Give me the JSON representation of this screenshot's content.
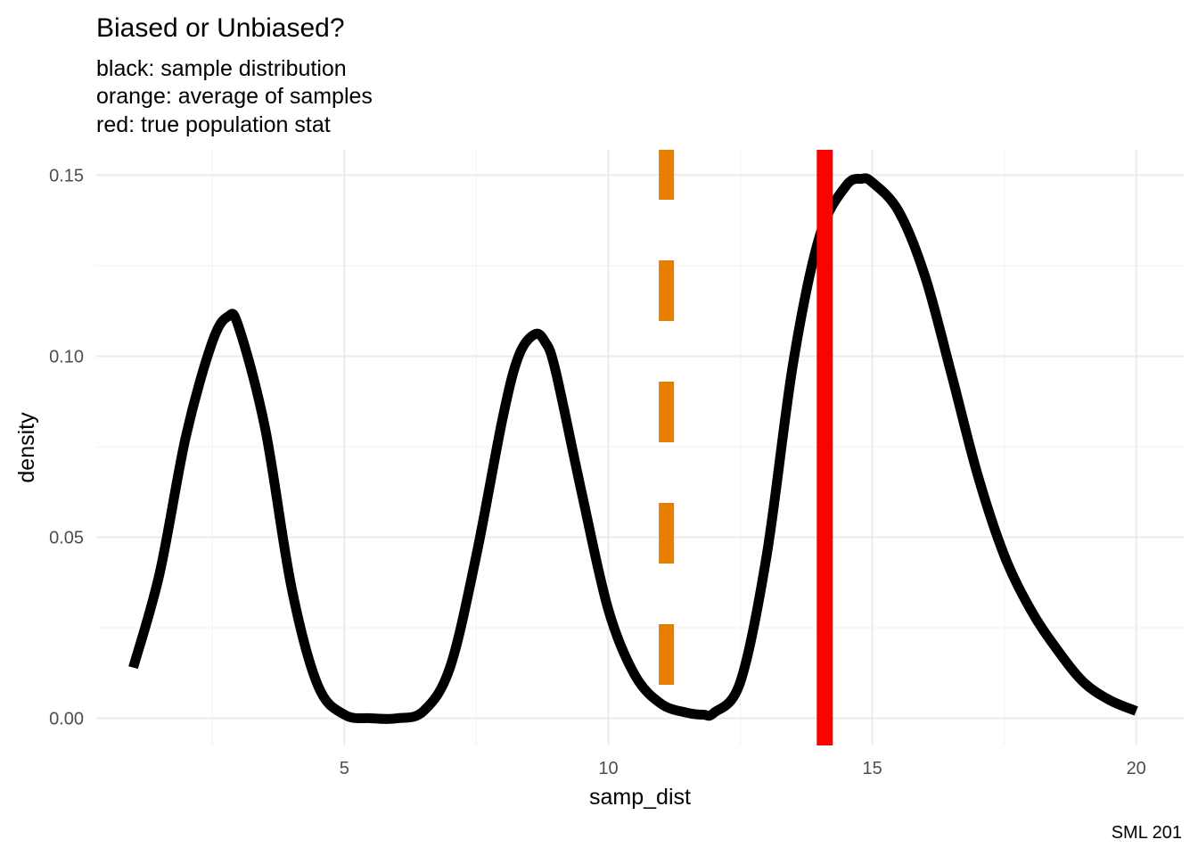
{
  "chart_data": {
    "type": "line",
    "title": "Biased or Unbiased?",
    "subtitle_lines": [
      "black: sample distribution",
      "orange: average of samples",
      "red: true population stat"
    ],
    "xlabel": "samp_dist",
    "ylabel": "density",
    "caption": "SML 201",
    "xlim": [
      0.3,
      20.9
    ],
    "ylim": [
      -0.0075,
      0.157
    ],
    "x_ticks": [
      5,
      10,
      15,
      20
    ],
    "x_tick_labels": [
      "5",
      "10",
      "15",
      "20"
    ],
    "x_minor_ticks": [
      2.5,
      7.5,
      12.5,
      17.5
    ],
    "y_ticks": [
      0,
      0.05,
      0.1,
      0.15
    ],
    "y_tick_labels": [
      "0.00",
      "0.05",
      "0.10",
      "0.15"
    ],
    "y_minor_ticks": [
      0.025,
      0.075,
      0.125
    ],
    "grid": true,
    "legend": "none",
    "colors": {
      "density_line": "#000000",
      "average_line": "#e87d00",
      "true_line": "#ff0000",
      "grid": "#ebebeb"
    },
    "series": [
      {
        "x": [
          1.0,
          1.5,
          2.0,
          2.5,
          2.8,
          3.0,
          3.5,
          4.0,
          4.5,
          5.0,
          5.5,
          6.0,
          6.5,
          7.0,
          7.5,
          8.0,
          8.3,
          8.6,
          8.8,
          9.0,
          9.5,
          10.0,
          10.5,
          11.0,
          11.5,
          11.8,
          12.0,
          12.5,
          13.0,
          13.5,
          14.0,
          14.5,
          14.8,
          15.0,
          15.5,
          16.0,
          16.5,
          17.0,
          17.5,
          18.0,
          18.5,
          19.0,
          19.5,
          20.0
        ],
        "values": [
          0.014,
          0.04,
          0.078,
          0.104,
          0.111,
          0.108,
          0.08,
          0.036,
          0.009,
          0.001,
          0.0,
          0.0,
          0.002,
          0.014,
          0.045,
          0.083,
          0.1,
          0.106,
          0.104,
          0.096,
          0.062,
          0.03,
          0.012,
          0.004,
          0.0015,
          0.001,
          0.0015,
          0.01,
          0.045,
          0.098,
          0.133,
          0.147,
          0.149,
          0.148,
          0.14,
          0.122,
          0.095,
          0.067,
          0.045,
          0.03,
          0.019,
          0.01,
          0.005,
          0.002
        ]
      }
    ],
    "vlines": [
      {
        "x": 11.1,
        "style": "dashed",
        "color": "#e87d00"
      },
      {
        "x": 14.1,
        "style": "solid",
        "color": "#ff0000"
      }
    ]
  }
}
